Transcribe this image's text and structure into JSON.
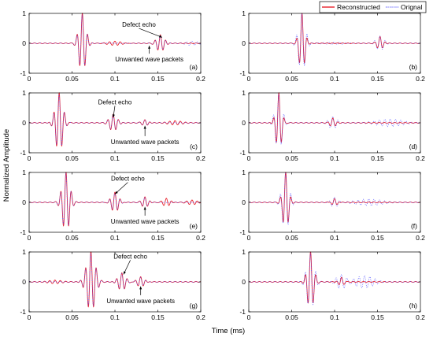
{
  "chart_data": {
    "type": "line",
    "ylabel": "Normalized Amplitude",
    "xlabel": "Time (ms)",
    "xlim": [
      0,
      0.2
    ],
    "ylim": [
      -1,
      1
    ],
    "xticks": [
      "0",
      "0.05",
      "0.1",
      "0.15",
      "0.2"
    ],
    "yticks": [
      "-1",
      "0",
      "1"
    ],
    "legend": {
      "placement": "top-right",
      "entries": [
        {
          "name": "Reconstructed",
          "color": "#e8202a",
          "style": "solid"
        },
        {
          "name": "Orignal",
          "color": "#4a4aff",
          "style": "dotted"
        }
      ]
    },
    "panels": [
      {
        "label": "(a)",
        "col": 0,
        "row": 0,
        "series": {
          "reconstructed": [
            {
              "center": 0.062,
              "amp": 1.0,
              "width": 0.0055
            },
            {
              "center": 0.153,
              "amp": 0.28,
              "width": 0.006
            },
            {
              "center": 0.1,
              "amp": 0.08,
              "width": 0.012
            }
          ],
          "original": [
            {
              "center": 0.062,
              "amp": 0.95,
              "width": 0.0055
            },
            {
              "center": 0.153,
              "amp": 0.25,
              "width": 0.006
            },
            {
              "center": 0.19,
              "amp": 0.07,
              "width": 0.01
            }
          ]
        },
        "annotations": [
          {
            "text": "Defect echo",
            "x": 0.128,
            "y": 0.55,
            "arrow_to": [
              0.155,
              0.2
            ]
          },
          {
            "text": "Unwanted wave packets",
            "x": 0.14,
            "y": -0.45,
            "arrow_to": [
              0.14,
              -0.08
            ]
          }
        ]
      },
      {
        "label": "(b)",
        "col": 1,
        "row": 0,
        "series": {
          "reconstructed": [
            {
              "center": 0.062,
              "amp": 1.0,
              "width": 0.0045
            },
            {
              "center": 0.153,
              "amp": 0.22,
              "width": 0.0045
            }
          ],
          "original": [
            {
              "center": 0.062,
              "amp": 0.98,
              "width": 0.0055
            },
            {
              "center": 0.153,
              "amp": 0.24,
              "width": 0.006
            },
            {
              "center": 0.1,
              "amp": 0.05,
              "width": 0.02
            }
          ]
        },
        "annotations": []
      },
      {
        "label": "(c)",
        "col": 0,
        "row": 1,
        "series": {
          "reconstructed": [
            {
              "center": 0.035,
              "amp": 1.0,
              "width": 0.006
            },
            {
              "center": 0.098,
              "amp": 0.28,
              "width": 0.006
            },
            {
              "center": 0.135,
              "amp": 0.1,
              "width": 0.005
            },
            {
              "center": 0.17,
              "amp": 0.06,
              "width": 0.01
            }
          ],
          "original": [
            {
              "center": 0.035,
              "amp": 0.95,
              "width": 0.006
            },
            {
              "center": 0.098,
              "amp": 0.26,
              "width": 0.006
            },
            {
              "center": 0.135,
              "amp": 0.09,
              "width": 0.005
            }
          ]
        },
        "annotations": [
          {
            "text": "Defect echo",
            "x": 0.1,
            "y": 0.62,
            "arrow_to": [
              0.098,
              0.18
            ]
          },
          {
            "text": "Unwanted wave packets",
            "x": 0.135,
            "y": -0.55,
            "arrow_to": [
              0.135,
              -0.1
            ]
          }
        ]
      },
      {
        "label": "(d)",
        "col": 1,
        "row": 1,
        "series": {
          "reconstructed": [
            {
              "center": 0.035,
              "amp": 1.0,
              "width": 0.0045
            },
            {
              "center": 0.098,
              "amp": 0.15,
              "width": 0.004
            }
          ],
          "original": [
            {
              "center": 0.035,
              "amp": 0.95,
              "width": 0.0055
            },
            {
              "center": 0.098,
              "amp": 0.2,
              "width": 0.006
            },
            {
              "center": 0.165,
              "amp": 0.12,
              "width": 0.02
            }
          ]
        },
        "annotations": []
      },
      {
        "label": "(e)",
        "col": 0,
        "row": 2,
        "series": {
          "reconstructed": [
            {
              "center": 0.043,
              "amp": 1.0,
              "width": 0.006
            },
            {
              "center": 0.1,
              "amp": 0.35,
              "width": 0.006
            },
            {
              "center": 0.135,
              "amp": 0.18,
              "width": 0.005
            },
            {
              "center": 0.16,
              "amp": 0.14,
              "width": 0.006
            },
            {
              "center": 0.19,
              "amp": 0.08,
              "width": 0.008
            }
          ],
          "original": [
            {
              "center": 0.043,
              "amp": 0.95,
              "width": 0.006
            },
            {
              "center": 0.1,
              "amp": 0.32,
              "width": 0.006
            },
            {
              "center": 0.135,
              "amp": 0.16,
              "width": 0.005
            }
          ]
        },
        "annotations": [
          {
            "text": "Defect echo",
            "x": 0.115,
            "y": 0.72,
            "arrow_to": [
              0.1,
              0.28
            ]
          },
          {
            "text": "Unwanted wave packets",
            "x": 0.135,
            "y": -0.55,
            "arrow_to": [
              0.135,
              -0.15
            ]
          }
        ]
      },
      {
        "label": "(f)",
        "col": 1,
        "row": 2,
        "series": {
          "reconstructed": [
            {
              "center": 0.043,
              "amp": 1.0,
              "width": 0.0045
            },
            {
              "center": 0.1,
              "amp": 0.14,
              "width": 0.004
            }
          ],
          "original": [
            {
              "center": 0.043,
              "amp": 0.95,
              "width": 0.0055
            },
            {
              "center": 0.1,
              "amp": 0.18,
              "width": 0.006
            },
            {
              "center": 0.14,
              "amp": 0.1,
              "width": 0.02
            }
          ]
        },
        "annotations": []
      },
      {
        "label": "(g)",
        "col": 0,
        "row": 3,
        "series": {
          "reconstructed": [
            {
              "center": 0.072,
              "amp": 1.0,
              "width": 0.007
            },
            {
              "center": 0.108,
              "amp": 0.3,
              "width": 0.006
            },
            {
              "center": 0.13,
              "amp": 0.18,
              "width": 0.006
            },
            {
              "center": 0.03,
              "amp": 0.05,
              "width": 0.01
            }
          ],
          "original": [
            {
              "center": 0.072,
              "amp": 0.95,
              "width": 0.007
            },
            {
              "center": 0.108,
              "amp": 0.28,
              "width": 0.006
            },
            {
              "center": 0.13,
              "amp": 0.16,
              "width": 0.006
            }
          ]
        },
        "annotations": [
          {
            "text": "Defect echo",
            "x": 0.118,
            "y": 0.78,
            "arrow_to": [
              0.11,
              0.25
            ]
          },
          {
            "text": "Unwanted wave packets",
            "x": 0.13,
            "y": -0.55,
            "arrow_to": [
              0.13,
              -0.15
            ]
          }
        ]
      },
      {
        "label": "(h)",
        "col": 1,
        "row": 3,
        "series": {
          "reconstructed": [
            {
              "center": 0.072,
              "amp": 1.0,
              "width": 0.005
            },
            {
              "center": 0.108,
              "amp": 0.15,
              "width": 0.004
            }
          ],
          "original": [
            {
              "center": 0.072,
              "amp": 0.95,
              "width": 0.006
            },
            {
              "center": 0.108,
              "amp": 0.25,
              "width": 0.008
            },
            {
              "center": 0.135,
              "amp": 0.2,
              "width": 0.015
            }
          ]
        },
        "annotations": []
      }
    ]
  }
}
